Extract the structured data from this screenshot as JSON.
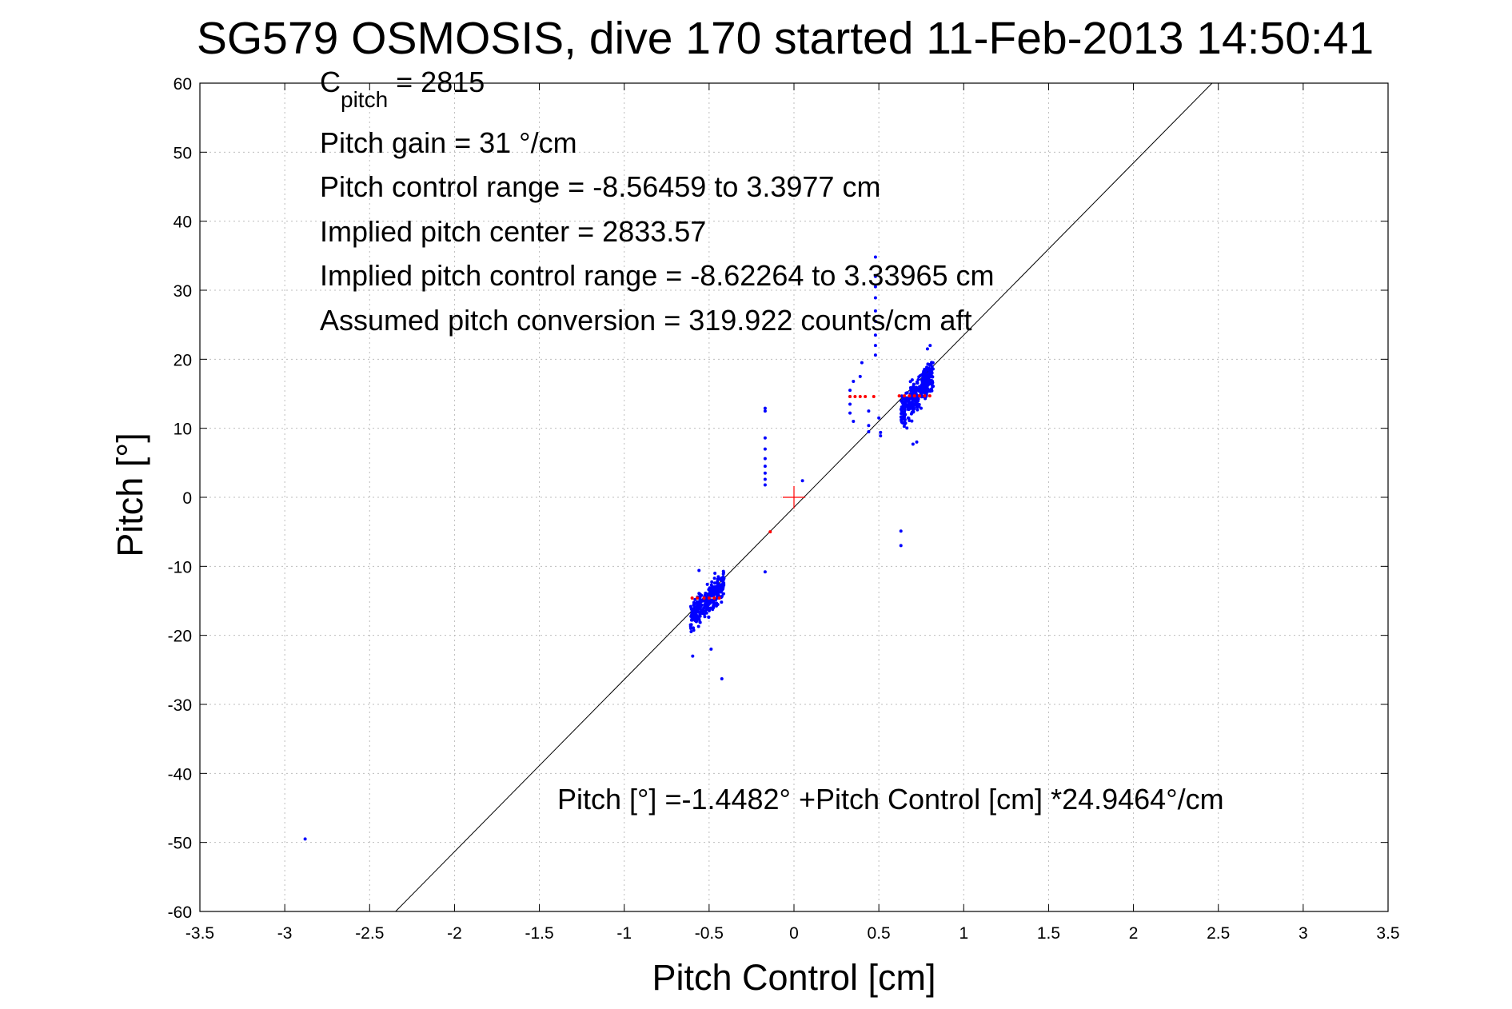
{
  "chart_data": {
    "type": "scatter",
    "title": "SG579 OSMOSIS, dive 170 started 11-Feb-2013 14:50:41",
    "xlabel": "Pitch Control [cm]",
    "ylabel": "Pitch [°]",
    "xlim": [
      -3.5,
      3.5
    ],
    "ylim": [
      -60,
      60
    ],
    "xticks": [
      -3.5,
      -3,
      -2.5,
      -2,
      -1.5,
      -1,
      -0.5,
      0,
      0.5,
      1,
      1.5,
      2,
      2.5,
      3,
      3.5
    ],
    "yticks": [
      -60,
      -50,
      -40,
      -30,
      -20,
      -10,
      0,
      10,
      20,
      30,
      40,
      50,
      60
    ],
    "xtick_labels": [
      "-3.5",
      "-3",
      "-2.5",
      "-2",
      "-1.5",
      "-1",
      "-0.5",
      "0",
      "0.5",
      "1",
      "1.5",
      "2",
      "2.5",
      "3",
      "3.5"
    ],
    "ytick_labels": [
      "-60",
      "-50",
      "-40",
      "-30",
      "-20",
      "-10",
      "0",
      "10",
      "20",
      "30",
      "40",
      "50",
      "60"
    ],
    "grid": true,
    "annotations": {
      "c_pitch_main": "C",
      "c_pitch_sub": "pitch",
      "c_pitch_value": " = 2815",
      "pitch_gain": "Pitch gain = 31 °/cm",
      "pitch_control_range": "Pitch control range = -8.56459 to 3.3977 cm",
      "implied_pitch_center": "Implied pitch center = 2833.57",
      "implied_pitch_control_range": "Implied pitch control range = -8.62264 to 3.33965 cm",
      "assumed_pitch_conversion": "Assumed pitch conversion = 319.922 counts/cm aft",
      "fit_equation": "Pitch [°] =-1.4482° +Pitch Control [cm] *24.9464°/cm"
    },
    "fit_line": {
      "intercept": -1.4482,
      "slope": 24.9464,
      "color": "#000000"
    },
    "center_marker": {
      "x": 0,
      "y": 0,
      "color": "#ff0000"
    },
    "series": [
      {
        "color": "#0000ff",
        "points": [
          [
            -2.88,
            -49.5
          ],
          [
            -0.17,
            12.9
          ],
          [
            -0.17,
            12.5
          ],
          [
            -0.17,
            8.6
          ],
          [
            -0.17,
            7.0
          ],
          [
            -0.17,
            5.6
          ],
          [
            -0.17,
            4.5
          ],
          [
            -0.17,
            3.5
          ],
          [
            -0.17,
            2.6
          ],
          [
            -0.17,
            1.8
          ],
          [
            -0.17,
            -10.8
          ],
          [
            0.05,
            2.4
          ],
          [
            0.33,
            15.5
          ],
          [
            0.33,
            14.6
          ],
          [
            0.33,
            13.5
          ],
          [
            0.33,
            12.2
          ],
          [
            0.35,
            11.0
          ],
          [
            0.35,
            16.8
          ],
          [
            0.39,
            17.5
          ],
          [
            0.4,
            19.5
          ],
          [
            0.44,
            12.5
          ],
          [
            0.44,
            10.4
          ],
          [
            0.44,
            9.5
          ],
          [
            0.48,
            34.8
          ],
          [
            0.48,
            32.0
          ],
          [
            0.48,
            30.5
          ],
          [
            0.48,
            28.9
          ],
          [
            0.48,
            27.0
          ],
          [
            0.48,
            25.5
          ],
          [
            0.48,
            23.5
          ],
          [
            0.48,
            22.0
          ],
          [
            0.48,
            20.6
          ],
          [
            0.5,
            11.5
          ],
          [
            0.51,
            9.4
          ],
          [
            0.51,
            8.9
          ],
          [
            0.63,
            -4.9
          ],
          [
            0.63,
            -7.0
          ]
        ]
      },
      {
        "color": "#ff0000",
        "points": [
          [
            -0.53,
            -14.6
          ],
          [
            -0.5,
            -14.6
          ],
          [
            -0.47,
            -14.6
          ],
          [
            -0.44,
            -14.6
          ],
          [
            -0.57,
            -14.6
          ],
          [
            -0.6,
            -14.6
          ],
          [
            -0.14,
            -5.0
          ],
          [
            0.33,
            14.6
          ],
          [
            0.36,
            14.6
          ],
          [
            0.39,
            14.6
          ],
          [
            0.42,
            14.6
          ],
          [
            0.47,
            14.6
          ],
          [
            0.62,
            14.7
          ],
          [
            0.65,
            14.7
          ],
          [
            0.68,
            14.7
          ],
          [
            0.71,
            14.7
          ],
          [
            0.74,
            14.7
          ],
          [
            0.77,
            14.7
          ],
          [
            0.8,
            14.7
          ]
        ]
      }
    ],
    "clusters": [
      {
        "x_range": [
          -0.61,
          -0.41
        ],
        "y_mean": -15.0,
        "y_spread": 3.0,
        "x_y_slope": 25,
        "count": 300,
        "extra_y": [
          -22.0,
          -23.0,
          -26.3,
          -10.6,
          -11.0
        ],
        "color": "#0000ff"
      },
      {
        "x_range": [
          0.63,
          0.82
        ],
        "y_mean": 15.0,
        "y_spread": 3.5,
        "x_y_slope": 30,
        "count": 340,
        "extra_y": [
          22.0,
          21.5,
          8.0,
          7.7
        ],
        "color": "#0000ff"
      }
    ]
  }
}
